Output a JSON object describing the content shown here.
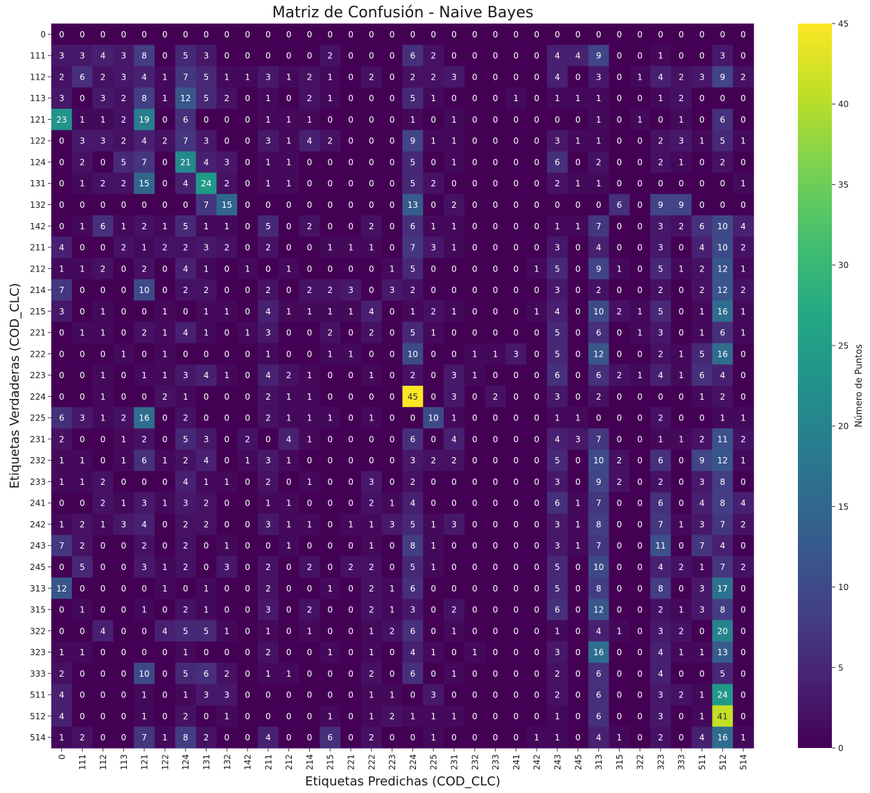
{
  "chart_data": {
    "type": "heatmap",
    "title": "Matriz de Confusión - Naive Bayes",
    "xlabel": "Etiquetas Predichas (COD_CLC)",
    "ylabel": "Etiquetas Verdaderas (COD_CLC)",
    "colorbar_label": "Número de Puntos",
    "colormap": "viridis",
    "color_range": [
      0,
      45
    ],
    "colorbar_ticks": [
      0,
      5,
      10,
      15,
      20,
      25,
      30,
      35,
      40,
      45
    ],
    "labels": [
      "0",
      "111",
      "112",
      "113",
      "121",
      "122",
      "124",
      "131",
      "132",
      "142",
      "211",
      "212",
      "214",
      "215",
      "221",
      "222",
      "223",
      "224",
      "225",
      "231",
      "232",
      "233",
      "241",
      "242",
      "243",
      "245",
      "313",
      "315",
      "322",
      "323",
      "333",
      "511",
      "512",
      "514"
    ],
    "matrix": [
      [
        0,
        0,
        0,
        0,
        0,
        0,
        0,
        0,
        0,
        0,
        0,
        0,
        0,
        0,
        0,
        0,
        0,
        0,
        0,
        0,
        0,
        0,
        0,
        0,
        0,
        0,
        0,
        0,
        0,
        0,
        0,
        0,
        0,
        0
      ],
      [
        3,
        3,
        4,
        3,
        8,
        0,
        5,
        3,
        0,
        0,
        0,
        0,
        0,
        2,
        0,
        0,
        0,
        6,
        2,
        0,
        0,
        0,
        0,
        0,
        4,
        4,
        9,
        0,
        0,
        1,
        0,
        0,
        3,
        0
      ],
      [
        2,
        6,
        2,
        3,
        4,
        1,
        7,
        5,
        1,
        1,
        3,
        1,
        2,
        1,
        0,
        2,
        0,
        2,
        2,
        3,
        0,
        0,
        0,
        0,
        4,
        0,
        3,
        0,
        1,
        4,
        2,
        3,
        9,
        2
      ],
      [
        3,
        0,
        3,
        2,
        8,
        1,
        12,
        5,
        2,
        0,
        1,
        0,
        2,
        1,
        0,
        0,
        0,
        5,
        1,
        0,
        0,
        0,
        1,
        0,
        1,
        1,
        1,
        0,
        0,
        1,
        2,
        0,
        0,
        0
      ],
      [
        23,
        1,
        1,
        2,
        19,
        0,
        6,
        0,
        0,
        0,
        1,
        1,
        1,
        0,
        0,
        0,
        0,
        1,
        0,
        1,
        0,
        0,
        0,
        0,
        0,
        0,
        1,
        0,
        1,
        0,
        1,
        0,
        6,
        0
      ],
      [
        0,
        3,
        3,
        2,
        4,
        2,
        7,
        3,
        0,
        0,
        3,
        1,
        4,
        2,
        0,
        0,
        0,
        9,
        1,
        1,
        0,
        0,
        0,
        0,
        3,
        1,
        1,
        0,
        0,
        2,
        3,
        1,
        5,
        1
      ],
      [
        0,
        2,
        0,
        5,
        7,
        0,
        21,
        4,
        3,
        0,
        1,
        1,
        0,
        0,
        0,
        0,
        0,
        5,
        0,
        1,
        0,
        0,
        0,
        0,
        6,
        0,
        2,
        0,
        0,
        2,
        1,
        0,
        2,
        0
      ],
      [
        0,
        1,
        2,
        2,
        15,
        0,
        4,
        24,
        2,
        0,
        1,
        1,
        0,
        0,
        0,
        0,
        0,
        5,
        2,
        0,
        0,
        0,
        0,
        0,
        2,
        1,
        1,
        0,
        0,
        0,
        0,
        0,
        0,
        1
      ],
      [
        0,
        0,
        0,
        0,
        0,
        0,
        0,
        7,
        15,
        0,
        0,
        0,
        0,
        0,
        0,
        0,
        0,
        13,
        0,
        2,
        0,
        0,
        0,
        0,
        0,
        0,
        0,
        6,
        0,
        9,
        9,
        0,
        0,
        0
      ],
      [
        0,
        1,
        6,
        1,
        2,
        1,
        5,
        1,
        1,
        0,
        5,
        0,
        2,
        0,
        0,
        2,
        0,
        6,
        1,
        1,
        0,
        0,
        0,
        0,
        1,
        1,
        7,
        0,
        0,
        3,
        2,
        6,
        10,
        4
      ],
      [
        4,
        0,
        0,
        2,
        1,
        2,
        2,
        3,
        2,
        0,
        2,
        0,
        0,
        1,
        1,
        1,
        0,
        7,
        3,
        1,
        0,
        0,
        0,
        0,
        3,
        0,
        4,
        0,
        0,
        3,
        0,
        4,
        10,
        2
      ],
      [
        1,
        1,
        2,
        0,
        2,
        0,
        4,
        1,
        0,
        1,
        0,
        1,
        0,
        0,
        0,
        0,
        1,
        5,
        0,
        0,
        0,
        0,
        0,
        1,
        5,
        0,
        9,
        1,
        0,
        5,
        1,
        2,
        12,
        1
      ],
      [
        7,
        0,
        0,
        0,
        10,
        0,
        2,
        2,
        0,
        0,
        2,
        0,
        2,
        2,
        3,
        0,
        3,
        2,
        0,
        0,
        0,
        0,
        0,
        0,
        3,
        0,
        2,
        0,
        0,
        2,
        0,
        2,
        12,
        2
      ],
      [
        3,
        0,
        1,
        0,
        0,
        1,
        0,
        1,
        1,
        0,
        4,
        1,
        1,
        1,
        1,
        4,
        0,
        1,
        2,
        1,
        0,
        0,
        0,
        1,
        4,
        0,
        10,
        2,
        1,
        5,
        0,
        1,
        16,
        1
      ],
      [
        0,
        1,
        1,
        0,
        2,
        1,
        4,
        1,
        0,
        1,
        3,
        0,
        0,
        2,
        0,
        2,
        0,
        5,
        1,
        0,
        0,
        0,
        0,
        0,
        5,
        0,
        6,
        0,
        1,
        3,
        0,
        1,
        6,
        1
      ],
      [
        0,
        0,
        0,
        1,
        0,
        1,
        0,
        0,
        0,
        0,
        1,
        0,
        0,
        1,
        1,
        0,
        0,
        10,
        0,
        0,
        1,
        1,
        3,
        0,
        5,
        0,
        12,
        0,
        0,
        2,
        1,
        5,
        16,
        0
      ],
      [
        0,
        0,
        1,
        0,
        1,
        1,
        3,
        4,
        1,
        0,
        4,
        2,
        1,
        0,
        0,
        1,
        0,
        2,
        0,
        3,
        1,
        0,
        0,
        0,
        6,
        0,
        6,
        2,
        1,
        4,
        1,
        6,
        4,
        0
      ],
      [
        0,
        0,
        1,
        0,
        0,
        2,
        1,
        0,
        0,
        0,
        2,
        1,
        1,
        0,
        0,
        0,
        0,
        45,
        0,
        3,
        0,
        2,
        0,
        0,
        3,
        0,
        2,
        0,
        0,
        0,
        0,
        1,
        2,
        0
      ],
      [
        6,
        3,
        1,
        2,
        16,
        0,
        2,
        0,
        0,
        0,
        2,
        1,
        1,
        1,
        0,
        1,
        0,
        0,
        10,
        1,
        0,
        0,
        0,
        0,
        1,
        1,
        0,
        0,
        0,
        2,
        0,
        0,
        1,
        1
      ],
      [
        2,
        0,
        0,
        1,
        2,
        0,
        5,
        3,
        0,
        2,
        0,
        4,
        1,
        0,
        0,
        0,
        0,
        6,
        0,
        4,
        0,
        0,
        0,
        0,
        4,
        3,
        7,
        0,
        0,
        1,
        1,
        2,
        11,
        2
      ],
      [
        1,
        1,
        0,
        1,
        6,
        1,
        2,
        4,
        0,
        1,
        3,
        1,
        0,
        0,
        0,
        0,
        0,
        3,
        2,
        2,
        0,
        0,
        0,
        0,
        5,
        0,
        10,
        2,
        0,
        6,
        0,
        9,
        12,
        1
      ],
      [
        1,
        1,
        2,
        0,
        0,
        0,
        4,
        1,
        1,
        0,
        2,
        0,
        1,
        0,
        0,
        3,
        0,
        2,
        0,
        0,
        0,
        0,
        0,
        0,
        3,
        0,
        9,
        2,
        0,
        2,
        0,
        3,
        8,
        0
      ],
      [
        0,
        0,
        2,
        1,
        3,
        1,
        3,
        2,
        0,
        0,
        1,
        1,
        0,
        0,
        0,
        2,
        1,
        4,
        0,
        0,
        0,
        0,
        0,
        0,
        6,
        1,
        7,
        0,
        0,
        6,
        0,
        4,
        8,
        4
      ],
      [
        1,
        2,
        1,
        3,
        4,
        0,
        2,
        2,
        0,
        0,
        3,
        1,
        1,
        0,
        1,
        1,
        3,
        5,
        1,
        3,
        0,
        0,
        0,
        0,
        3,
        1,
        8,
        0,
        0,
        7,
        1,
        3,
        7,
        2
      ],
      [
        7,
        2,
        0,
        0,
        2,
        0,
        2,
        0,
        1,
        0,
        0,
        1,
        0,
        0,
        0,
        1,
        0,
        8,
        1,
        0,
        0,
        0,
        0,
        0,
        3,
        1,
        7,
        0,
        0,
        11,
        0,
        7,
        4,
        0
      ],
      [
        0,
        5,
        0,
        0,
        3,
        1,
        2,
        0,
        3,
        0,
        2,
        0,
        2,
        0,
        2,
        2,
        0,
        5,
        1,
        0,
        0,
        0,
        0,
        0,
        5,
        0,
        10,
        0,
        0,
        4,
        2,
        1,
        7,
        2
      ],
      [
        12,
        0,
        0,
        0,
        0,
        1,
        0,
        1,
        0,
        0,
        2,
        0,
        0,
        1,
        0,
        2,
        1,
        6,
        0,
        0,
        0,
        0,
        0,
        0,
        5,
        0,
        8,
        0,
        0,
        8,
        0,
        3,
        17,
        0
      ],
      [
        0,
        1,
        0,
        0,
        1,
        0,
        2,
        1,
        0,
        0,
        3,
        0,
        2,
        0,
        0,
        2,
        1,
        3,
        0,
        2,
        0,
        0,
        0,
        0,
        6,
        0,
        12,
        0,
        0,
        2,
        1,
        3,
        8,
        0
      ],
      [
        0,
        0,
        4,
        0,
        0,
        4,
        5,
        5,
        1,
        0,
        1,
        0,
        1,
        0,
        0,
        1,
        2,
        6,
        0,
        1,
        0,
        0,
        0,
        0,
        1,
        0,
        4,
        1,
        0,
        3,
        2,
        0,
        20,
        0
      ],
      [
        1,
        1,
        0,
        0,
        0,
        0,
        1,
        0,
        0,
        0,
        2,
        0,
        0,
        1,
        0,
        1,
        0,
        4,
        1,
        0,
        1,
        0,
        0,
        0,
        3,
        0,
        16,
        0,
        0,
        4,
        1,
        1,
        13,
        0
      ],
      [
        2,
        0,
        0,
        0,
        10,
        0,
        5,
        6,
        2,
        0,
        1,
        1,
        0,
        0,
        0,
        2,
        0,
        6,
        0,
        1,
        0,
        0,
        0,
        0,
        2,
        0,
        6,
        0,
        0,
        4,
        0,
        0,
        5,
        0
      ],
      [
        4,
        0,
        0,
        0,
        1,
        0,
        1,
        3,
        3,
        0,
        0,
        0,
        0,
        0,
        0,
        1,
        1,
        0,
        3,
        0,
        0,
        0,
        0,
        0,
        2,
        0,
        6,
        0,
        0,
        3,
        2,
        1,
        24,
        0
      ],
      [
        4,
        0,
        0,
        0,
        1,
        0,
        2,
        0,
        1,
        0,
        0,
        0,
        0,
        1,
        0,
        1,
        2,
        1,
        1,
        1,
        0,
        0,
        0,
        0,
        1,
        0,
        6,
        0,
        0,
        3,
        0,
        1,
        41,
        0
      ],
      [
        1,
        2,
        0,
        0,
        7,
        1,
        8,
        2,
        0,
        0,
        4,
        0,
        0,
        6,
        0,
        2,
        0,
        0,
        1,
        0,
        0,
        0,
        0,
        1,
        1,
        0,
        4,
        1,
        0,
        2,
        0,
        4,
        16,
        1
      ]
    ]
  }
}
